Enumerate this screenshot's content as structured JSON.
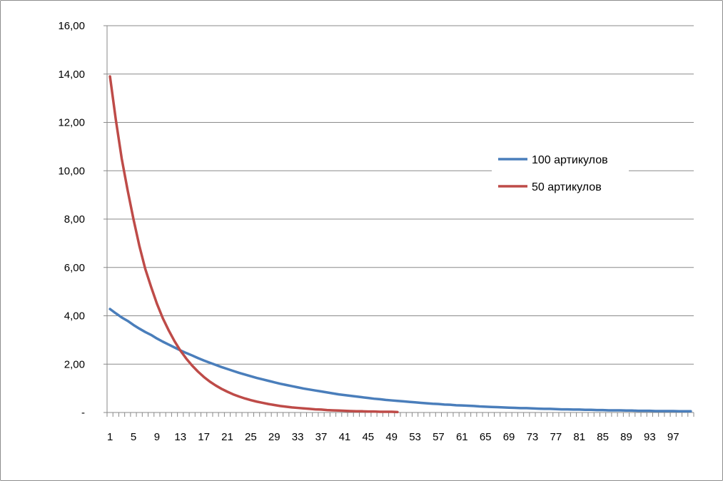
{
  "chart_data": {
    "type": "line",
    "grid": true,
    "legend_position": "right",
    "ylim": [
      0,
      16
    ],
    "y_ticks": [
      {
        "value": 0,
        "label": "-"
      },
      {
        "value": 2,
        "label": "2,00"
      },
      {
        "value": 4,
        "label": "4,00"
      },
      {
        "value": 6,
        "label": "6,00"
      },
      {
        "value": 8,
        "label": "8,00"
      },
      {
        "value": 10,
        "label": "10,00"
      },
      {
        "value": 12,
        "label": "12,00"
      },
      {
        "value": 14,
        "label": "14,00"
      },
      {
        "value": 16,
        "label": "16,00"
      }
    ],
    "x_range": [
      1,
      100
    ],
    "x_tick_labels": [
      "1",
      "5",
      "9",
      "13",
      "17",
      "21",
      "25",
      "29",
      "33",
      "37",
      "41",
      "45",
      "49",
      "53",
      "57",
      "61",
      "65",
      "69",
      "73",
      "77",
      "81",
      "85",
      "89",
      "93",
      "97"
    ],
    "series": [
      {
        "name": "100 артикулов",
        "color": "#4a7ebb",
        "x_start": 1,
        "values": [
          4.28,
          4.1,
          3.93,
          3.79,
          3.62,
          3.47,
          3.33,
          3.21,
          3.06,
          2.93,
          2.81,
          2.69,
          2.57,
          2.46,
          2.36,
          2.25,
          2.15,
          2.06,
          1.97,
          1.88,
          1.8,
          1.72,
          1.64,
          1.57,
          1.5,
          1.43,
          1.37,
          1.31,
          1.25,
          1.19,
          1.14,
          1.09,
          1.04,
          0.99,
          0.95,
          0.91,
          0.87,
          0.83,
          0.79,
          0.75,
          0.72,
          0.69,
          0.66,
          0.63,
          0.6,
          0.57,
          0.55,
          0.52,
          0.5,
          0.48,
          0.46,
          0.44,
          0.42,
          0.4,
          0.38,
          0.36,
          0.35,
          0.33,
          0.32,
          0.3,
          0.29,
          0.28,
          0.27,
          0.25,
          0.24,
          0.23,
          0.22,
          0.21,
          0.2,
          0.19,
          0.18,
          0.18,
          0.17,
          0.16,
          0.15,
          0.15,
          0.14,
          0.13,
          0.13,
          0.12,
          0.12,
          0.11,
          0.11,
          0.1,
          0.1,
          0.09,
          0.09,
          0.09,
          0.08,
          0.08,
          0.07,
          0.07,
          0.07,
          0.06,
          0.06,
          0.06,
          0.06,
          0.05,
          0.05,
          0.05
        ]
      },
      {
        "name": "50 артикулов",
        "color": "#be4b48",
        "x_start": 1,
        "values": [
          13.9,
          12.1,
          10.5,
          9.2,
          8.0,
          6.9,
          5.95,
          5.2,
          4.5,
          3.9,
          3.4,
          2.95,
          2.56,
          2.23,
          1.94,
          1.69,
          1.47,
          1.28,
          1.12,
          0.98,
          0.86,
          0.75,
          0.66,
          0.58,
          0.51,
          0.45,
          0.4,
          0.35,
          0.31,
          0.27,
          0.24,
          0.21,
          0.19,
          0.17,
          0.15,
          0.13,
          0.12,
          0.1,
          0.09,
          0.08,
          0.07,
          0.06,
          0.05,
          0.05,
          0.04,
          0.04,
          0.03,
          0.03,
          0.03,
          0.02
        ]
      }
    ]
  }
}
